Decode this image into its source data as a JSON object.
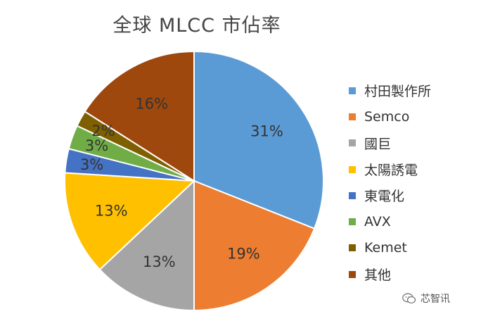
{
  "chart_data": {
    "type": "pie",
    "title": "全球 MLCC 市佔率",
    "start_angle_deg": 0,
    "direction": "clockwise",
    "legend_position": "right",
    "series": [
      {
        "name": "村田製作所",
        "value": 31,
        "label": "31%",
        "color": "#5B9BD5"
      },
      {
        "name": "Semco",
        "value": 19,
        "label": "19%",
        "color": "#ED7D31"
      },
      {
        "name": "國巨",
        "value": 13,
        "label": "13%",
        "color": "#A5A5A5"
      },
      {
        "name": "太陽誘電",
        "value": 13,
        "label": "13%",
        "color": "#FFC000"
      },
      {
        "name": "東電化",
        "value": 3,
        "label": "3%",
        "color": "#4472C4"
      },
      {
        "name": "AVX",
        "value": 3,
        "label": "3%",
        "color": "#70AD47"
      },
      {
        "name": "Kemet",
        "value": 2,
        "label": "2%",
        "color": "#7F6000"
      },
      {
        "name": "其他",
        "value": 16,
        "label": "16%",
        "color": "#9E480E"
      }
    ]
  },
  "watermark": {
    "text": "芯智讯",
    "icon": "wechat-icon"
  }
}
